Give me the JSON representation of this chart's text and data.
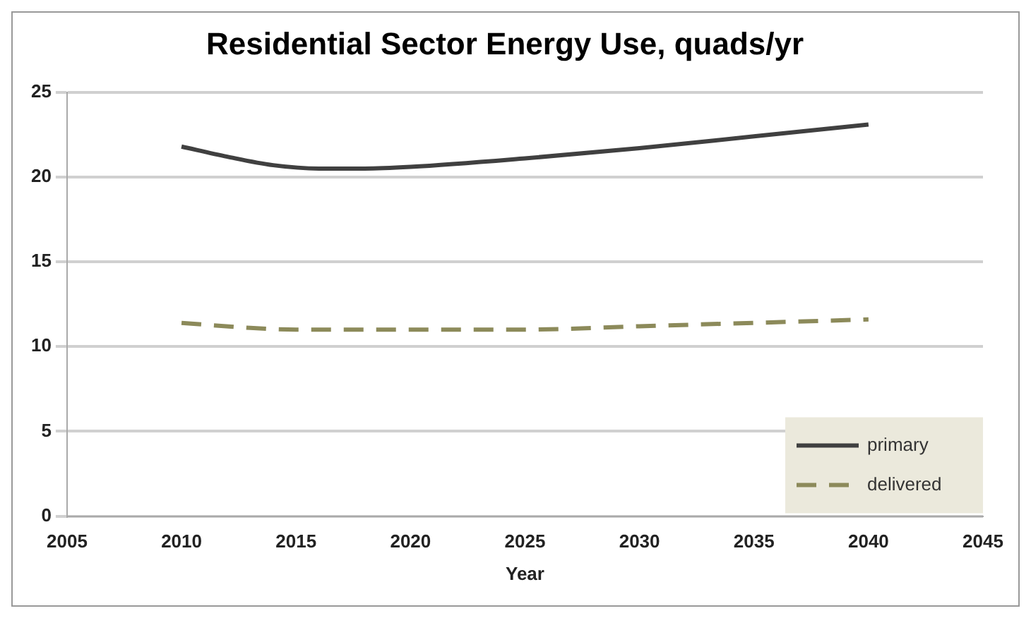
{
  "chart_data": {
    "type": "line",
    "title": "Residential Sector Energy Use, quads/yr",
    "xlabel": "Year",
    "xlim": [
      2005,
      2045
    ],
    "xticks": [
      2005,
      2010,
      2015,
      2020,
      2025,
      2030,
      2035,
      2040,
      2045
    ],
    "ylim": [
      0,
      25
    ],
    "yticks": [
      0,
      5,
      10,
      15,
      20,
      25
    ],
    "grid": "y",
    "legend": "bottom right",
    "marker": "none",
    "series": [
      {
        "name": "primary",
        "color": "#404040",
        "line_style": "solid",
        "x": [
          2010,
          2012,
          2014,
          2016,
          2018,
          2020,
          2025,
          2030,
          2035,
          2040
        ],
        "values": [
          21.8,
          21.2,
          20.7,
          20.5,
          20.5,
          20.6,
          21.1,
          21.7,
          22.4,
          23.1
        ]
      },
      {
        "name": "delivered",
        "color": "#8c8a5a",
        "line_style": "dashed",
        "x": [
          2010,
          2013,
          2015,
          2020,
          2025,
          2030,
          2035,
          2040
        ],
        "values": [
          11.4,
          11.1,
          11.0,
          11.0,
          11.0,
          11.2,
          11.4,
          11.6
        ]
      }
    ]
  }
}
